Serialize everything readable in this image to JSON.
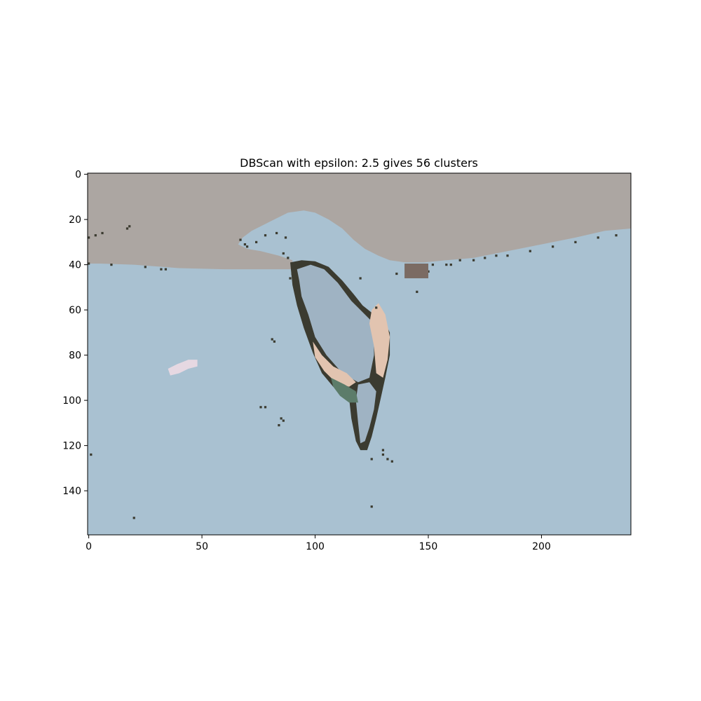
{
  "chart_data": {
    "type": "heatmap",
    "title": "DBScan with epsilon: 2.5 gives 56 clusters",
    "xlabel": "",
    "ylabel": "",
    "xlim": [
      -0.5,
      239.5
    ],
    "ylim": [
      159.5,
      -0.5
    ],
    "x_ticks": [
      0,
      50,
      100,
      150,
      200
    ],
    "y_ticks": [
      0,
      20,
      40,
      60,
      80,
      100,
      120,
      140
    ],
    "grid": false,
    "image_size": {
      "cols": 240,
      "rows": 160
    },
    "colors": {
      "water": "#a9c1d1",
      "land": "#aca6a2",
      "lake": "#9fb3c3",
      "edge_dark": "#3b3b30",
      "sand": "#e2c4b0",
      "green_shore": "#5c7c6a",
      "pink": "#e6d8e2",
      "brown": "#7b6b63"
    },
    "regions": [
      {
        "label": "land",
        "color_key": "land"
      },
      {
        "label": "water",
        "color_key": "water"
      },
      {
        "label": "lake",
        "color_key": "lake"
      },
      {
        "label": "edge",
        "color_key": "edge_dark"
      },
      {
        "label": "sand",
        "color_key": "sand"
      },
      {
        "label": "green shore",
        "color_key": "green_shore"
      },
      {
        "label": "pink blob",
        "color_key": "pink"
      }
    ]
  }
}
